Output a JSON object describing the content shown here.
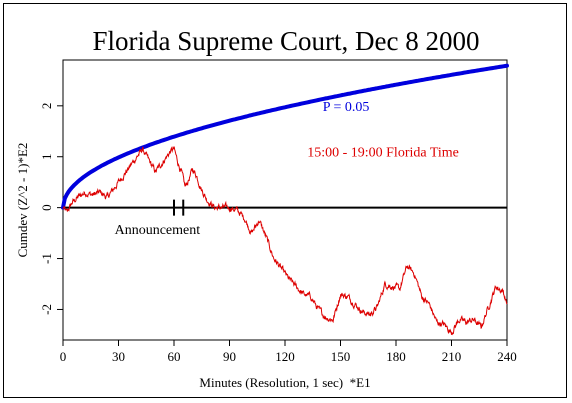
{
  "chart_data": {
    "type": "line",
    "title": "Florida Supreme Court, Dec 8 2000",
    "xlabel": "Minutes (Resolution, 1 sec)  *E1",
    "ylabel": "Cumdev (Z^2 - 1)*E2",
    "xlim": [
      0,
      240
    ],
    "ylim": [
      -2.6,
      2.9
    ],
    "x_ticks": [
      "0",
      "30",
      "60",
      "90",
      "120",
      "150",
      "180",
      "210",
      "240"
    ],
    "y_ticks": [
      "-2",
      "-1",
      "0",
      "1",
      "2"
    ],
    "grid": false,
    "zero_line": 0,
    "series": [
      {
        "name": "P = 0.05",
        "color": "#0000dd",
        "kind": "sqrt-envelope",
        "coefficient": 0.18,
        "x": [
          0,
          10,
          30,
          60,
          90,
          120,
          150,
          180,
          210,
          240
        ],
        "y": [
          0,
          0.58,
          1.0,
          1.41,
          1.73,
          2.0,
          2.23,
          2.45,
          2.64,
          2.82
        ]
      },
      {
        "name": "15:00 - 19:00 Florida Time",
        "color": "#dd0000",
        "kind": "cumdev",
        "x": [
          0,
          2,
          5,
          8,
          12,
          16,
          20,
          24,
          28,
          32,
          36,
          40,
          43,
          46,
          50,
          54,
          58,
          60,
          62,
          64,
          66,
          68,
          70,
          72,
          75,
          78,
          82,
          86,
          90,
          94,
          98,
          102,
          106,
          110,
          114,
          118,
          122,
          126,
          130,
          134,
          138,
          142,
          146,
          150,
          154,
          158,
          162,
          166,
          170,
          174,
          178,
          182,
          186,
          190,
          194,
          198,
          202,
          206,
          210,
          214,
          218,
          222,
          226,
          230,
          234,
          238,
          240
        ],
        "y": [
          0,
          -0.1,
          0.1,
          0.2,
          0.3,
          0.25,
          0.3,
          0.2,
          0.4,
          0.6,
          0.8,
          1.0,
          1.15,
          0.95,
          0.7,
          0.9,
          1.1,
          1.15,
          0.9,
          0.7,
          0.4,
          0.55,
          0.75,
          0.65,
          0.35,
          0.15,
          0.0,
          0.0,
          0.0,
          -0.05,
          -0.2,
          -0.5,
          -0.25,
          -0.6,
          -1.0,
          -1.2,
          -1.4,
          -1.55,
          -1.7,
          -1.75,
          -2.0,
          -2.15,
          -2.2,
          -1.7,
          -1.75,
          -1.9,
          -2.05,
          -2.1,
          -1.95,
          -1.5,
          -1.55,
          -1.6,
          -1.15,
          -1.3,
          -1.75,
          -1.9,
          -2.25,
          -2.3,
          -2.45,
          -2.2,
          -2.25,
          -2.2,
          -2.35,
          -1.95,
          -1.55,
          -1.65,
          -1.9
        ]
      }
    ],
    "annotations": [
      {
        "text": "P = 0.05",
        "color": "#0000dd",
        "x": 153,
        "y": 1.9
      },
      {
        "text": "15:00 - 19:00 Florida Time",
        "color": "#dd0000",
        "x": 173,
        "y": 1.0
      },
      {
        "text": "Announcement",
        "color": "#000000",
        "x": 51,
        "y": -0.52
      }
    ],
    "event_markers": {
      "x": [
        60,
        65
      ],
      "label": "Announcement"
    }
  }
}
